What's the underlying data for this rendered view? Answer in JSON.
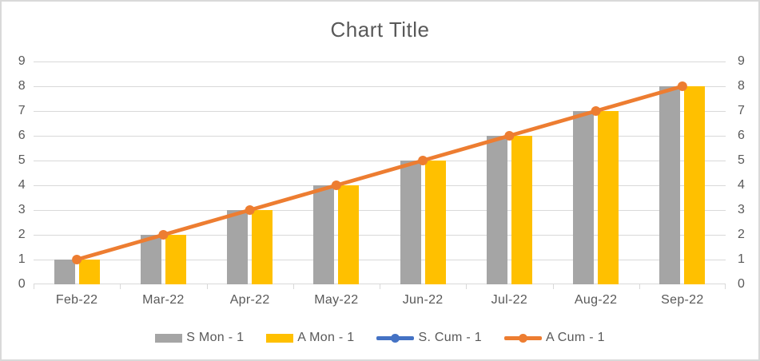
{
  "chart_data": {
    "type": "combo",
    "title": "Chart Title",
    "categories": [
      "Feb-22",
      "Mar-22",
      "Apr-22",
      "May-22",
      "Jun-22",
      "Jul-22",
      "Aug-22",
      "Sep-22"
    ],
    "series": [
      {
        "name": "S Mon - 1",
        "chart_type": "bar",
        "color": "#A5A5A5",
        "axis": "left",
        "values": [
          1,
          2,
          3,
          4,
          5,
          6,
          7,
          8
        ]
      },
      {
        "name": "A Mon - 1",
        "chart_type": "bar",
        "color": "#FFC000",
        "axis": "left",
        "values": [
          1,
          2,
          3,
          4,
          5,
          6,
          7,
          8
        ]
      },
      {
        "name": "S. Cum - 1",
        "chart_type": "line",
        "color": "#4472C4",
        "axis": "right",
        "values": [
          1,
          2,
          3,
          4,
          5,
          6,
          7,
          8
        ]
      },
      {
        "name": "A Cum - 1",
        "chart_type": "line",
        "color": "#ED7D31",
        "axis": "right",
        "values": [
          1,
          2,
          3,
          4,
          5,
          6,
          7,
          8
        ]
      }
    ],
    "left_axis": {
      "min": 0,
      "max": 9,
      "tick_labels": [
        "0",
        "1",
        "2",
        "3",
        "4",
        "5",
        "6",
        "7",
        "8",
        "9"
      ]
    },
    "right_axis": {
      "min": 0,
      "max": 9,
      "tick_labels": [
        "0",
        "1",
        "2",
        "3",
        "4",
        "5",
        "6",
        "7",
        "8",
        "9"
      ]
    },
    "grid": true,
    "legend_position": "bottom",
    "colors": {
      "gridline": "#D9D9D9",
      "axis_text": "#595959",
      "title_text": "#595959",
      "border": "#D9D9D9",
      "background": "#FFFFFF"
    }
  }
}
